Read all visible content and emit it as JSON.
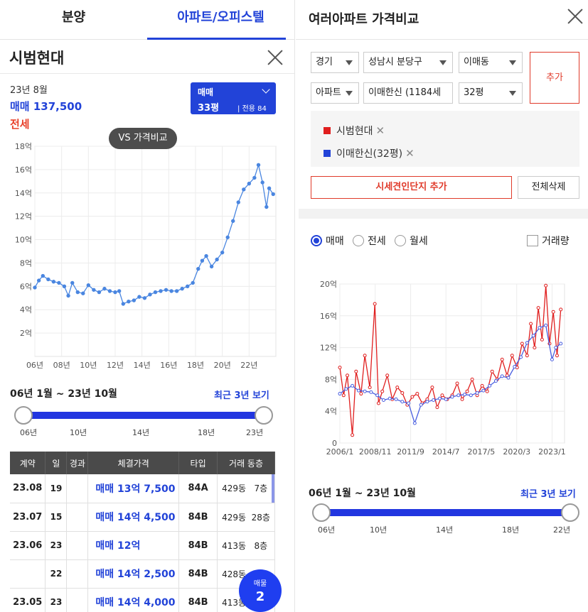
{
  "left": {
    "tabs": [
      "분양",
      "아파트/오피스텔"
    ],
    "complex_title": "시범현대",
    "info": {
      "yearmonth": "23년 8월",
      "sale": "매매 137,500",
      "jeonse": "전세"
    },
    "type_box": {
      "kind": "매매",
      "size": "33평",
      "area": "전용 84 ㎡"
    },
    "vs_button": "VS 가격비교",
    "range_text": "06년 1월 ~ 23년 10월",
    "recent_link": "최근 3년 보기",
    "slider_labels": [
      "06년",
      "10년",
      "14년",
      "18년",
      "23년"
    ],
    "table": {
      "headers": [
        "계약",
        "일",
        "경과",
        "체결가격",
        "타입",
        "거래 동층"
      ],
      "rows": [
        {
          "month": "23.08",
          "day": "19",
          "price": "매매  13억 7,500",
          "type": "84A",
          "bld": "429동",
          "floor": "7층"
        },
        {
          "month": "23.07",
          "day": "15",
          "price": "매매  14억 4,500",
          "type": "84B",
          "bld": "429동",
          "floor": "28층"
        },
        {
          "month": "23.06",
          "day": "23",
          "price": "매매  12억",
          "type": "84B",
          "bld": "413동",
          "floor": "8층"
        },
        {
          "month": "",
          "day": "22",
          "price": "매매  14억 2,500",
          "type": "84B",
          "bld": "428동",
          "floor": ""
        },
        {
          "month": "23.05",
          "day": "23",
          "price": "매매  14억 4,000",
          "type": "84B",
          "bld": "413동",
          "floor": ""
        }
      ]
    },
    "fab": {
      "label": "매물",
      "count": "2"
    }
  },
  "chart_left": {
    "type": "line",
    "title": "",
    "x_tick_labels": [
      "06년",
      "08년",
      "10년",
      "12년",
      "14년",
      "16년",
      "18년",
      "20년",
      "22년"
    ],
    "y_tick_labels": [
      "2억",
      "4억",
      "6억",
      "8억",
      "10억",
      "12억",
      "14억",
      "16억",
      "18억"
    ],
    "ylim": [
      0,
      18
    ],
    "xlim": [
      2006.0,
      2024.0
    ],
    "grid": true,
    "series": [
      {
        "color": "#4a86e0",
        "x": [
          2006.0,
          2006.3,
          2006.6,
          2007.0,
          2007.4,
          2007.8,
          2008.2,
          2008.5,
          2008.8,
          2009.2,
          2009.6,
          2010.0,
          2010.4,
          2010.8,
          2011.2,
          2011.6,
          2012.0,
          2012.3,
          2012.6,
          2013.0,
          2013.4,
          2013.8,
          2014.2,
          2014.6,
          2015.0,
          2015.4,
          2015.8,
          2016.2,
          2016.6,
          2017.0,
          2017.4,
          2017.8,
          2018.2,
          2018.5,
          2018.8,
          2019.2,
          2019.6,
          2020.0,
          2020.4,
          2020.8,
          2021.2,
          2021.6,
          2022.0,
          2022.4,
          2022.7,
          2023.0,
          2023.3,
          2023.5,
          2023.8
        ],
        "values": [
          5.9,
          6.5,
          6.9,
          6.6,
          6.4,
          6.3,
          6.0,
          5.2,
          6.3,
          5.5,
          5.4,
          6.1,
          5.7,
          5.5,
          5.8,
          5.6,
          5.5,
          5.6,
          4.5,
          4.7,
          4.8,
          5.1,
          5.0,
          5.3,
          5.5,
          5.6,
          5.7,
          5.6,
          5.6,
          5.8,
          6.0,
          6.3,
          7.5,
          8.2,
          8.6,
          7.7,
          8.3,
          8.9,
          10.2,
          11.6,
          13.2,
          14.3,
          14.8,
          15.3,
          16.4,
          14.9,
          12.8,
          14.4,
          13.9
        ]
      }
    ]
  },
  "right": {
    "title": "여러아파트 가격비교",
    "selects": {
      "sido": "경기",
      "gu": "성남시 분당구",
      "dong": "이매동",
      "kind": "아파트",
      "complex": "이매한신 (1184세",
      "size": "32평"
    },
    "add_button": "추가",
    "compare_items": [
      {
        "label": "시범현대",
        "color": "#e01e1e"
      },
      {
        "label": "이매한신(32평)",
        "color": "#2243d8"
      }
    ],
    "add_rep_button": "시세견인단지 추가",
    "delete_all_button": "전체삭제",
    "radios": [
      "매매",
      "전세",
      "월세"
    ],
    "checkbox": "거래량",
    "range_text": "06년 1월 ~ 23년 10월",
    "recent_link": "최근 3년 보기",
    "slider_labels": [
      "06년",
      "10년",
      "14년",
      "18년",
      "22년"
    ]
  },
  "chart_right": {
    "type": "line",
    "title": "",
    "x_tick_labels": [
      "2006/1",
      "2008/11",
      "2011/9",
      "2014/7",
      "2017/5",
      "2020/3",
      "2023/1"
    ],
    "y_tick_labels": [
      "0",
      "4억",
      "8억",
      "12억",
      "16억",
      "20억"
    ],
    "ylim": [
      0,
      20
    ],
    "xlim": [
      2006.0,
      2024.0
    ],
    "grid": true,
    "series": [
      {
        "name": "시범현대",
        "color": "#e01e1e",
        "x": [
          2006.0,
          2006.3,
          2006.6,
          2007.0,
          2007.3,
          2007.7,
          2008.0,
          2008.4,
          2008.8,
          2009.1,
          2009.4,
          2009.8,
          2010.2,
          2010.6,
          2011.0,
          2011.4,
          2011.8,
          2012.2,
          2012.6,
          2013.0,
          2013.4,
          2013.8,
          2014.2,
          2014.6,
          2015.0,
          2015.4,
          2015.8,
          2016.2,
          2016.6,
          2017.0,
          2017.4,
          2017.8,
          2018.2,
          2018.6,
          2019.0,
          2019.4,
          2019.8,
          2020.2,
          2020.6,
          2021.0,
          2021.3,
          2021.6,
          2021.9,
          2022.2,
          2022.5,
          2022.8,
          2023.1,
          2023.4,
          2023.7
        ],
        "values": [
          9.5,
          6.0,
          8.5,
          1.0,
          9.0,
          6.2,
          11.0,
          7.0,
          17.5,
          5.0,
          6.5,
          8.5,
          5.5,
          7.0,
          6.3,
          4.8,
          5.8,
          6.2,
          5.0,
          5.5,
          7.0,
          4.5,
          6.0,
          5.5,
          6.0,
          7.5,
          5.5,
          6.5,
          8.0,
          6.0,
          7.2,
          6.5,
          9.0,
          8.0,
          10.5,
          8.5,
          11.0,
          9.5,
          12.5,
          11.0,
          15.0,
          12.0,
          17.0,
          13.0,
          19.8,
          12.5,
          16.5,
          11.0,
          16.8
        ]
      },
      {
        "name": "이매한신(32평)",
        "color": "#4a5fe0",
        "x": [
          2006.0,
          2006.5,
          2007.0,
          2007.5,
          2008.0,
          2008.5,
          2009.0,
          2009.5,
          2010.0,
          2010.5,
          2011.0,
          2011.5,
          2012.0,
          2012.5,
          2013.0,
          2013.5,
          2014.0,
          2014.5,
          2015.0,
          2015.5,
          2016.0,
          2016.5,
          2017.0,
          2017.5,
          2018.0,
          2018.5,
          2019.0,
          2019.5,
          2020.0,
          2020.5,
          2021.0,
          2021.5,
          2022.0,
          2022.5,
          2023.0,
          2023.3,
          2023.7
        ],
        "values": [
          6.2,
          6.8,
          7.2,
          6.6,
          6.5,
          6.4,
          6.0,
          5.4,
          5.6,
          5.5,
          5.2,
          5.0,
          2.5,
          4.8,
          5.2,
          5.4,
          5.6,
          5.5,
          5.8,
          6.0,
          6.1,
          6.0,
          6.3,
          6.6,
          7.2,
          7.8,
          8.4,
          8.2,
          9.6,
          10.8,
          12.6,
          13.5,
          14.5,
          14.8,
          10.5,
          12.0,
          12.5
        ]
      }
    ]
  }
}
